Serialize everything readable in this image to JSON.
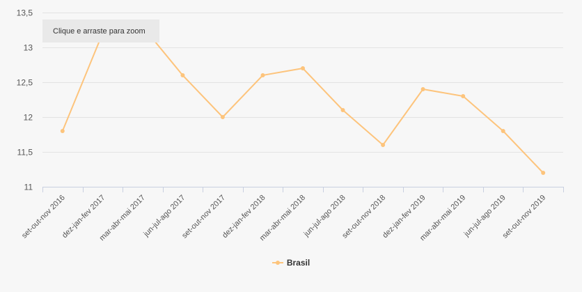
{
  "chart_data": {
    "type": "line",
    "categories": [
      "set-out-nov 2016",
      "dez-jan-fev 2017",
      "mar-abr-mai 2017",
      "jun-jul-ago 2017",
      "set-out-nov 2017",
      "dez-jan-fev 2018",
      "mar-abr-mai 2018",
      "jun-jul-ago 2018",
      "set-out-nov 2018",
      "dez-jan-fev 2019",
      "mar-abr-mai 2019",
      "jun-jul-ago 2019",
      "set-out-nov 2019"
    ],
    "series": [
      {
        "name": "Brasil",
        "color": "#fdc47c",
        "values": [
          11.8,
          13.2,
          13.3,
          12.6,
          12.0,
          12.6,
          12.7,
          12.1,
          11.6,
          12.4,
          12.3,
          11.8,
          11.2
        ]
      }
    ],
    "yticks": [
      "11",
      "11,5",
      "12",
      "12,5",
      "13",
      "13,5"
    ],
    "ylim": [
      11,
      13.5
    ],
    "grid": true,
    "legend": "bottom-center"
  },
  "zoom_hint": "Clique e arraste para zoom"
}
